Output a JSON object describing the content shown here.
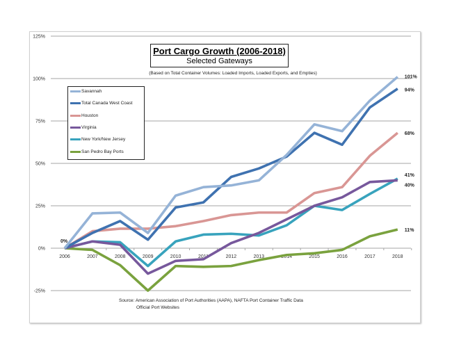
{
  "chart_data": {
    "type": "line",
    "title": "Port Cargo Growth (2006-2018)",
    "subtitle": "Selected Gateways",
    "note": "(Based on Total Container Volumes: Loaded Imports, Loaded Exports, and Empties)",
    "x": [
      "2006",
      "2007",
      "2008",
      "2009",
      "2010",
      "2011",
      "2012",
      "2013",
      "2014",
      "2015",
      "2016",
      "2017",
      "2018"
    ],
    "yticks": [
      "125%",
      "100%",
      "75%",
      "50%",
      "25%",
      "0%",
      "-25%"
    ],
    "ytick_values": [
      125,
      100,
      75,
      50,
      25,
      0,
      -25
    ],
    "ylim": [
      -25,
      125
    ],
    "grid": true,
    "legend_position": "top-left",
    "series": [
      {
        "name": "Savannah",
        "color": "#95b3d7",
        "values": [
          0,
          20.5,
          21,
          9,
          31,
          36,
          37,
          40,
          55,
          73,
          69,
          87,
          101
        ],
        "end_label": "101%"
      },
      {
        "name": "Total Canada West Coast",
        "color": "#3f72b0",
        "values": [
          0,
          9,
          16,
          5,
          24,
          27,
          42,
          47,
          54,
          68,
          61,
          83,
          94
        ],
        "end_label": "94%"
      },
      {
        "name": "Houston",
        "color": "#d99694",
        "values": [
          0,
          10,
          11.5,
          11.5,
          13,
          16,
          19.5,
          21,
          21,
          32.5,
          36,
          54.5,
          68
        ],
        "end_label": "68%"
      },
      {
        "name": "Virginia",
        "color": "#77589c",
        "values": [
          0,
          4,
          2,
          -15,
          -7.5,
          -6.5,
          3,
          9,
          17,
          25,
          30,
          39,
          40
        ],
        "end_label": "40%"
      },
      {
        "name": "New York/New Jersey",
        "color": "#38a3bd",
        "values": [
          0,
          4,
          3.5,
          -10.5,
          4,
          8,
          8.5,
          7.5,
          13.5,
          25,
          22.5,
          32,
          41
        ],
        "end_label": "41%"
      },
      {
        "name": "San Pedro Bay Ports",
        "color": "#7aa23e",
        "values": [
          0,
          -1,
          -10,
          -25,
          -10.5,
          -11,
          -10.5,
          -7,
          -4,
          -3,
          -1,
          7,
          11
        ],
        "end_label": "11%"
      }
    ],
    "start_label": "0%",
    "source_line1": "Source:  American Association of Port Authorities (AAPA),  NAFTA Port Container Traffic Data",
    "source_line2": "Official Port Websites"
  }
}
